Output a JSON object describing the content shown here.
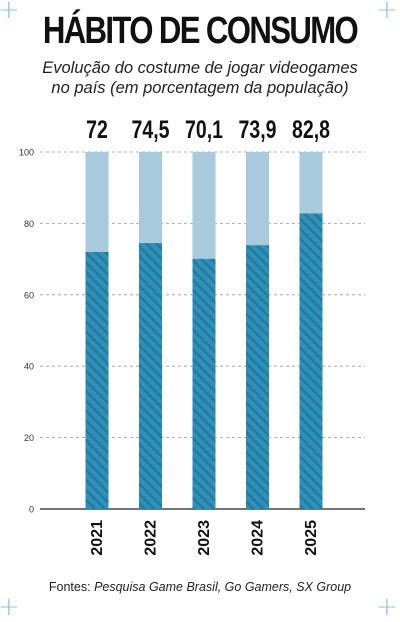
{
  "header": {
    "title": "HÁBITO DE CONSUMO",
    "subtitle_line1": "Evolução do costume de jogar videogames",
    "subtitle_line2": "no país (em porcentagem da população)"
  },
  "footer": {
    "source_prefix": "Fontes:",
    "source_names": "Pesquisa Game Brasil, Go Gamers, SX Group"
  },
  "colors": {
    "bar_fill": "#2f90b9",
    "bar_stripe": "#257aa0",
    "bar_remainder": "#a9cadd",
    "corner_marks": "#8cc3dd",
    "grid": "#999999"
  },
  "icons": {
    "corner_marks": "plus-icon"
  },
  "chart_data": {
    "type": "bar",
    "categories": [
      "2021",
      "2022",
      "2023",
      "2024",
      "2025"
    ],
    "values": [
      72,
      74.5,
      70.1,
      73.9,
      82.8
    ],
    "value_labels": [
      "72",
      "74,5",
      "70,1",
      "73,9",
      "82,8"
    ],
    "title": "HÁBITO DE CONSUMO",
    "xlabel": "",
    "ylabel": "",
    "ylim": [
      0,
      100
    ],
    "yticks": [
      "0",
      "20",
      "40",
      "60",
      "80",
      "100"
    ],
    "ytick_values": [
      0,
      20,
      40,
      60,
      80,
      100
    ],
    "grid": true,
    "stacked_remainder_to": 100
  }
}
